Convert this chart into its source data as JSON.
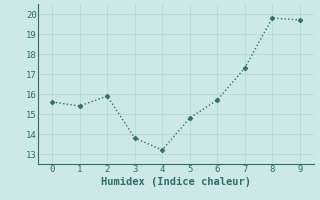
{
  "x": [
    0,
    1,
    2,
    3,
    4,
    5,
    6,
    7,
    8,
    9
  ],
  "y": [
    15.6,
    15.4,
    15.9,
    13.8,
    13.2,
    14.8,
    15.7,
    17.3,
    19.8,
    19.7
  ],
  "xlabel": "Humidex (Indice chaleur)",
  "ylim": [
    12.5,
    20.5
  ],
  "xlim": [
    -0.5,
    9.5
  ],
  "yticks": [
    13,
    14,
    15,
    16,
    17,
    18,
    19,
    20
  ],
  "xticks": [
    0,
    1,
    2,
    3,
    4,
    5,
    6,
    7,
    8,
    9
  ],
  "line_color": "#2e6e6e",
  "marker_color": "#2e6e6e",
  "bg_color": "#cce8e8",
  "grid_color": "#b8d8d8",
  "axis_color": "#2e6e6e",
  "label_fontsize": 7.5,
  "tick_fontsize": 6.5,
  "line_width": 1.0,
  "marker_size": 2.5
}
